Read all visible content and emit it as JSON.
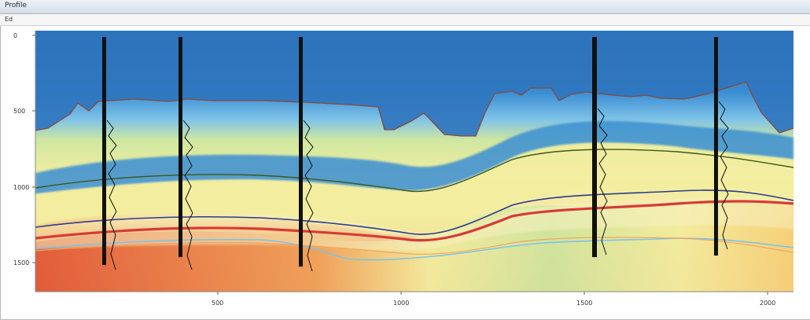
{
  "window": {
    "title": "Profile"
  },
  "menu": {
    "items": [
      "Ed"
    ]
  },
  "axes": {
    "y_ticks": [
      "0",
      "500",
      "1000",
      "1500"
    ],
    "x_ticks": [
      "500",
      "1000",
      "1500",
      "2000"
    ]
  },
  "colors": {
    "deep_blue": "#1f5fa8",
    "blue": "#3b8fd4",
    "light_blue": "#7fc3e8",
    "green_yellow": "#cfe7a0",
    "yellow": "#f3eea0",
    "orange": "#f0a25a",
    "red": "#d83a35",
    "horizon_brown": "#8a4a3a",
    "horizon_green": "#3b5a1e",
    "horizon_navy": "#2b3a8f",
    "well_black": "#111111"
  },
  "wells": 5,
  "icons": {
    "window": "window-icon"
  }
}
